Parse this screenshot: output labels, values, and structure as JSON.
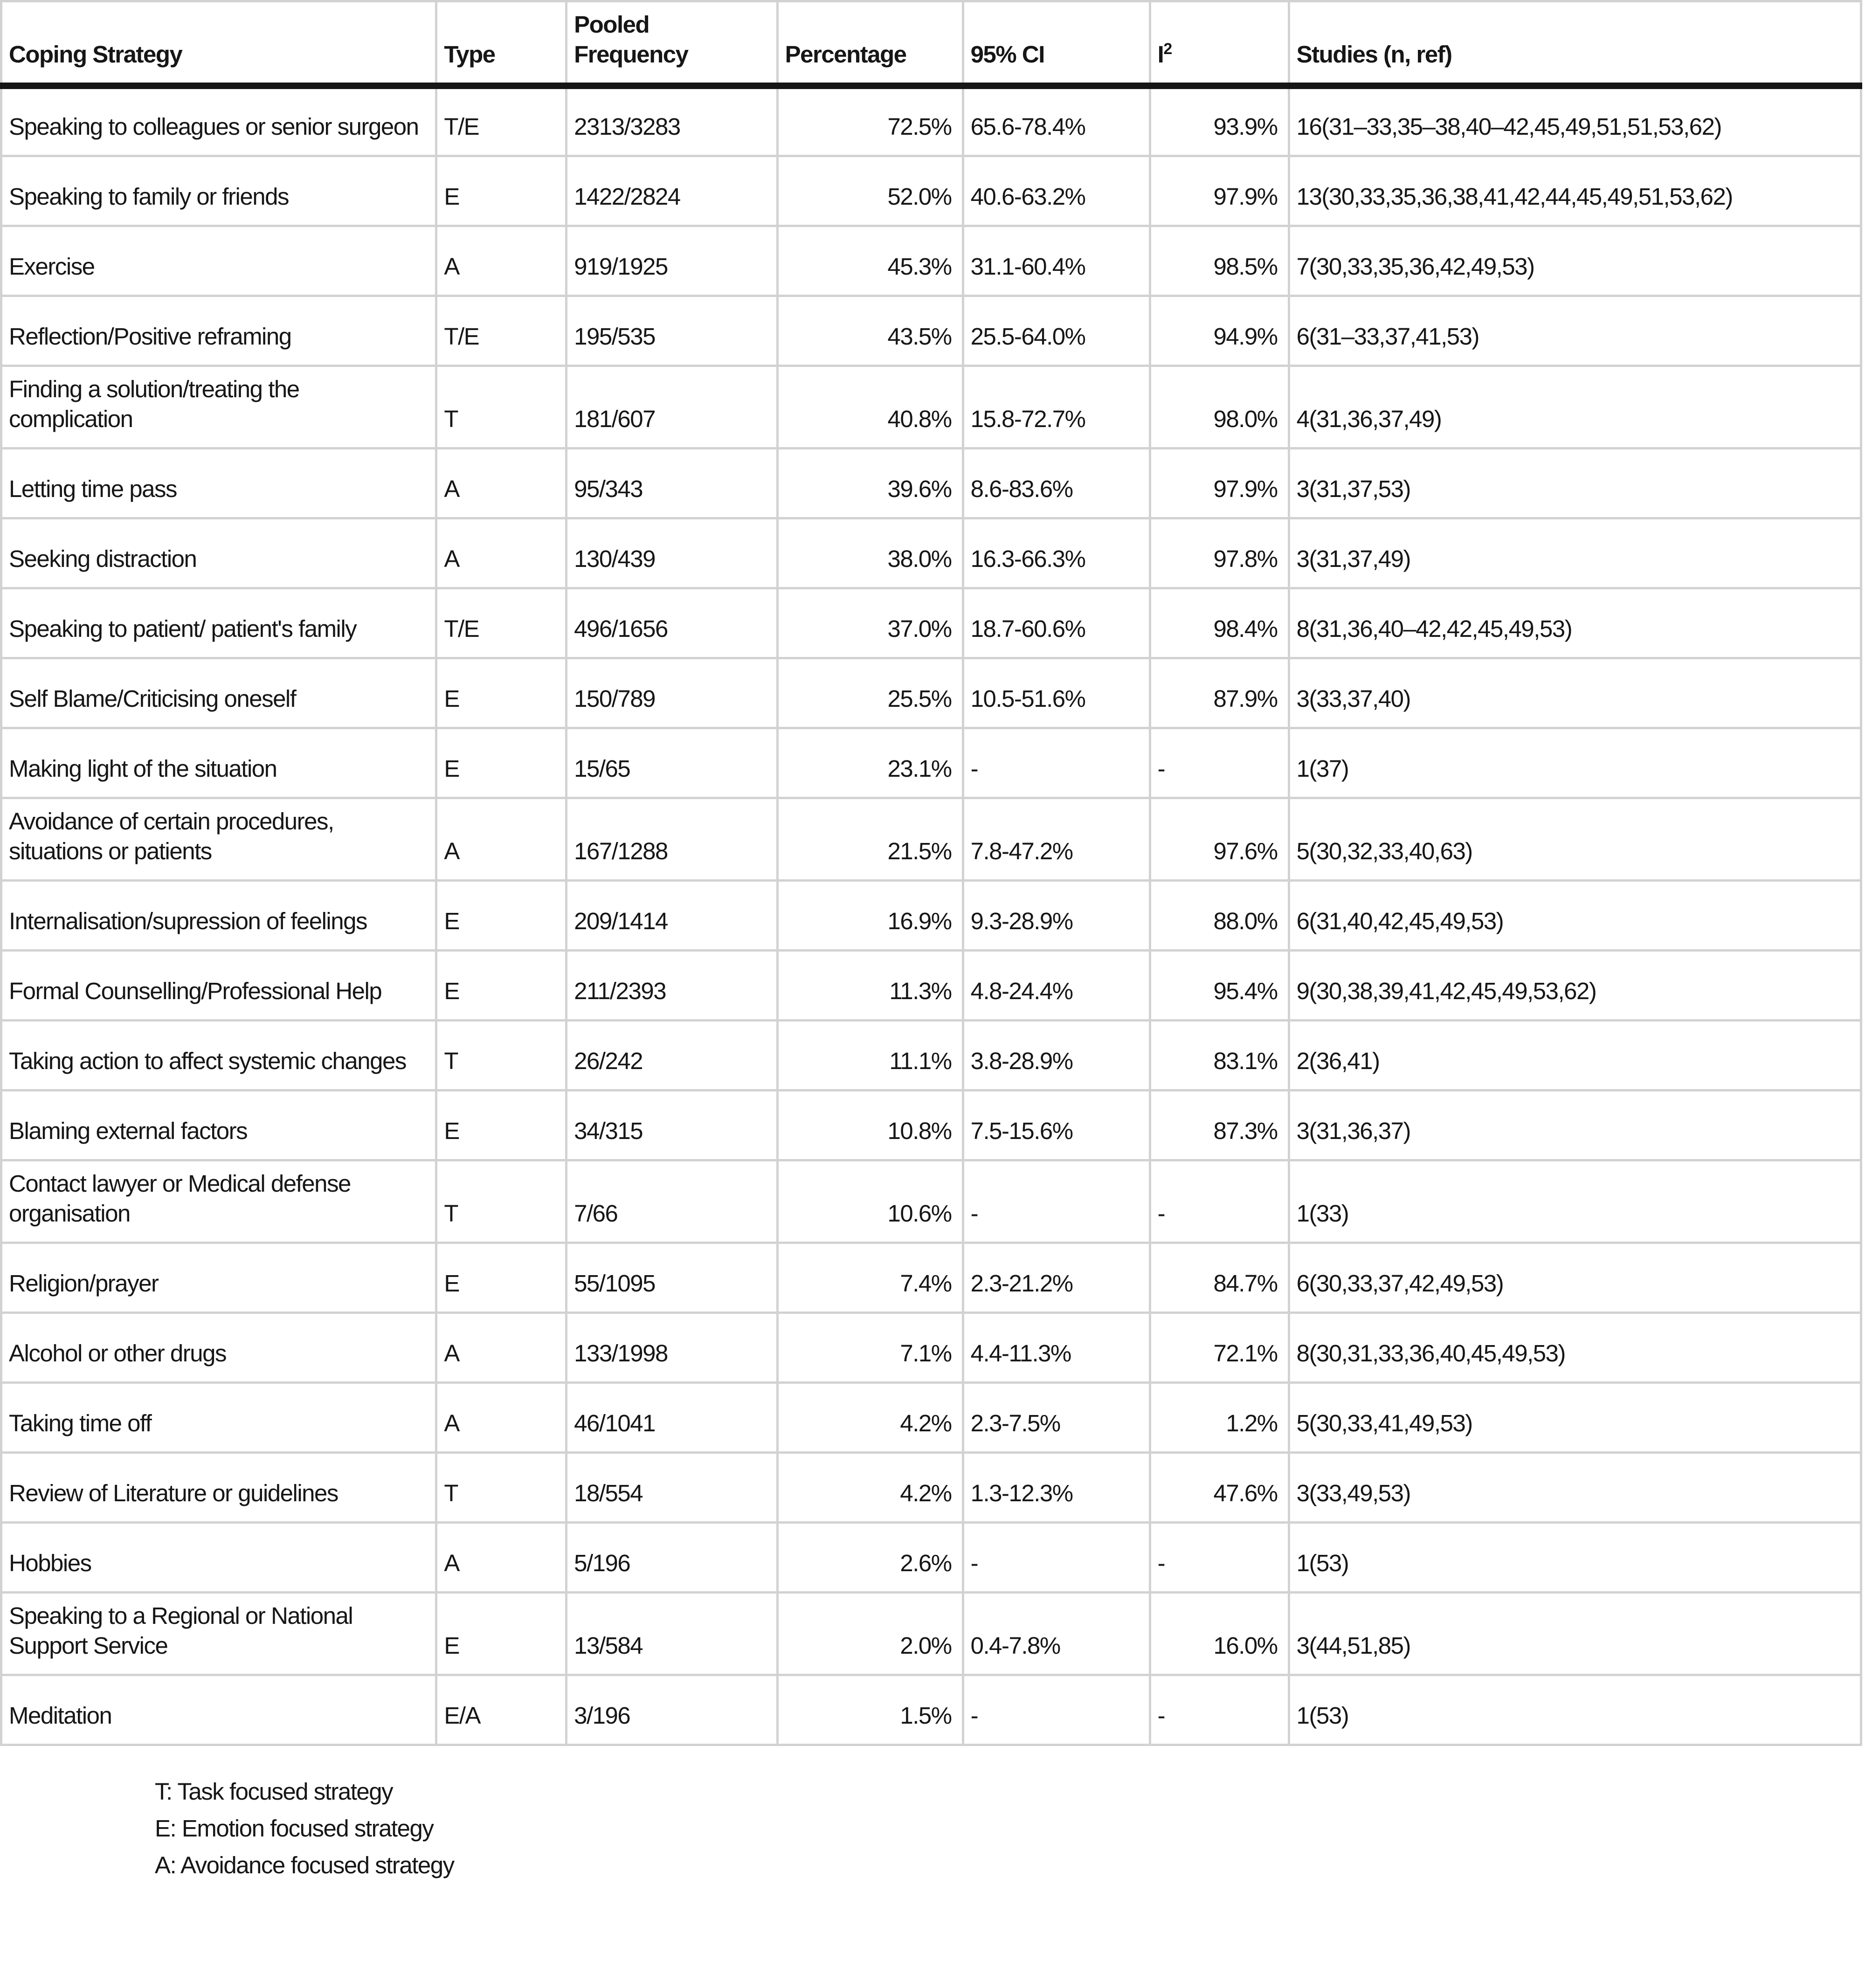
{
  "table": {
    "headers": {
      "strategy": "Coping Strategy",
      "type": "Type",
      "pooled": "Pooled Frequency",
      "percentage": "Percentage",
      "ci": "95% CI",
      "i2_base": "I",
      "i2_sup": "2",
      "studies": "Studies (n, ref)"
    },
    "rows": [
      {
        "strategy": "Speaking to colleagues or senior surgeon",
        "type": "T/E",
        "pooled": "2313/3283",
        "percentage": "72.5%",
        "ci": "65.6-78.4%",
        "i2": "93.9%",
        "studies": "16(31–33,35–38,40–42,45,49,51,51,53,62)"
      },
      {
        "strategy": "Speaking to family or friends",
        "type": "E",
        "pooled": "1422/2824",
        "percentage": "52.0%",
        "ci": "40.6-63.2%",
        "i2": "97.9%",
        "studies": "13(30,33,35,36,38,41,42,44,45,49,51,53,62)"
      },
      {
        "strategy": "Exercise",
        "type": "A",
        "pooled": "919/1925",
        "percentage": "45.3%",
        "ci": "31.1-60.4%",
        "i2": "98.5%",
        "studies": "7(30,33,35,36,42,49,53)"
      },
      {
        "strategy": "Reflection/Positive reframing",
        "type": "T/E",
        "pooled": "195/535",
        "percentage": "43.5%",
        "ci": "25.5-64.0%",
        "i2": "94.9%",
        "studies": "6(31–33,37,41,53)"
      },
      {
        "strategy": "Finding a solution/treating the complication",
        "type": "T",
        "pooled": "181/607",
        "percentage": "40.8%",
        "ci": "15.8-72.7%",
        "i2": "98.0%",
        "studies": "4(31,36,37,49)"
      },
      {
        "strategy": "Letting time pass",
        "type": "A",
        "pooled": "95/343",
        "percentage": "39.6%",
        "ci": "8.6-83.6%",
        "i2": "97.9%",
        "studies": "3(31,37,53)"
      },
      {
        "strategy": "Seeking distraction",
        "type": "A",
        "pooled": "130/439",
        "percentage": "38.0%",
        "ci": "16.3-66.3%",
        "i2": "97.8%",
        "studies": "3(31,37,49)"
      },
      {
        "strategy": "Speaking to patient/ patient's family",
        "type": "T/E",
        "pooled": "496/1656",
        "percentage": "37.0%",
        "ci": "18.7-60.6%",
        "i2": "98.4%",
        "studies": "8(31,36,40–42,42,45,49,53)"
      },
      {
        "strategy": "Self Blame/Criticising oneself",
        "type": "E",
        "pooled": "150/789",
        "percentage": "25.5%",
        "ci": "10.5-51.6%",
        "i2": "87.9%",
        "studies": "3(33,37,40)"
      },
      {
        "strategy": "Making light of the situation",
        "type": "E",
        "pooled": "15/65",
        "percentage": "23.1%",
        "ci": "-",
        "i2": "-",
        "studies": "1(37)"
      },
      {
        "strategy": "Avoidance of certain procedures, situations or patients",
        "type": "A",
        "pooled": "167/1288",
        "percentage": "21.5%",
        "ci": "7.8-47.2%",
        "i2": "97.6%",
        "studies": "5(30,32,33,40,63)"
      },
      {
        "strategy": "Internalisation/supression of feelings",
        "type": "E",
        "pooled": "209/1414",
        "percentage": "16.9%",
        "ci": "9.3-28.9%",
        "i2": "88.0%",
        "studies": "6(31,40,42,45,49,53)"
      },
      {
        "strategy": "Formal Counselling/Professional Help",
        "type": "E",
        "pooled": "211/2393",
        "percentage": "11.3%",
        "ci": "4.8-24.4%",
        "i2": "95.4%",
        "studies": "9(30,38,39,41,42,45,49,53,62)"
      },
      {
        "strategy": "Taking action to affect systemic changes",
        "type": "T",
        "pooled": "26/242",
        "percentage": "11.1%",
        "ci": "3.8-28.9%",
        "i2": "83.1%",
        "studies": "2(36,41)"
      },
      {
        "strategy": "Blaming external factors",
        "type": "E",
        "pooled": "34/315",
        "percentage": "10.8%",
        "ci": "7.5-15.6%",
        "i2": "87.3%",
        "studies": "3(31,36,37)"
      },
      {
        "strategy": "Contact lawyer or Medical defense organisation",
        "type": "T",
        "pooled": "7/66",
        "percentage": "10.6%",
        "ci": "-",
        "i2": "-",
        "studies": "1(33)"
      },
      {
        "strategy": "Religion/prayer",
        "type": "E",
        "pooled": "55/1095",
        "percentage": "7.4%",
        "ci": "2.3-21.2%",
        "i2": "84.7%",
        "studies": "6(30,33,37,42,49,53)"
      },
      {
        "strategy": "Alcohol or other drugs",
        "type": "A",
        "pooled": "133/1998",
        "percentage": "7.1%",
        "ci": "4.4-11.3%",
        "i2": "72.1%",
        "studies": "8(30,31,33,36,40,45,49,53)"
      },
      {
        "strategy": "Taking time off",
        "type": "A",
        "pooled": "46/1041",
        "percentage": "4.2%",
        "ci": "2.3-7.5%",
        "i2": "1.2%",
        "studies": "5(30,33,41,49,53)"
      },
      {
        "strategy": "Review of Literature or guidelines",
        "type": "T",
        "pooled": "18/554",
        "percentage": "4.2%",
        "ci": "1.3-12.3%",
        "i2": "47.6%",
        "studies": "3(33,49,53)"
      },
      {
        "strategy": "Hobbies",
        "type": "A",
        "pooled": "5/196",
        "percentage": "2.6%",
        "ci": "-",
        "i2": "-",
        "studies": "1(53)"
      },
      {
        "strategy": "Speaking to a Regional or National Support Service",
        "type": "E",
        "pooled": "13/584",
        "percentage": "2.0%",
        "ci": "0.4-7.8%",
        "i2": "16.0%",
        "studies": "3(44,51,85)"
      },
      {
        "strategy": "Meditation",
        "type": "E/A",
        "pooled": "3/196",
        "percentage": "1.5%",
        "ci": "-",
        "i2": "-",
        "studies": "1(53)"
      }
    ],
    "footnotes": [
      "T: Task focused strategy",
      "E: Emotion focused strategy",
      "A: Avoidance focused strategy"
    ]
  },
  "colors": {
    "text": "#161616",
    "grid": "#d2d2d2",
    "header_rule": "#161616",
    "background": "#ffffff"
  }
}
